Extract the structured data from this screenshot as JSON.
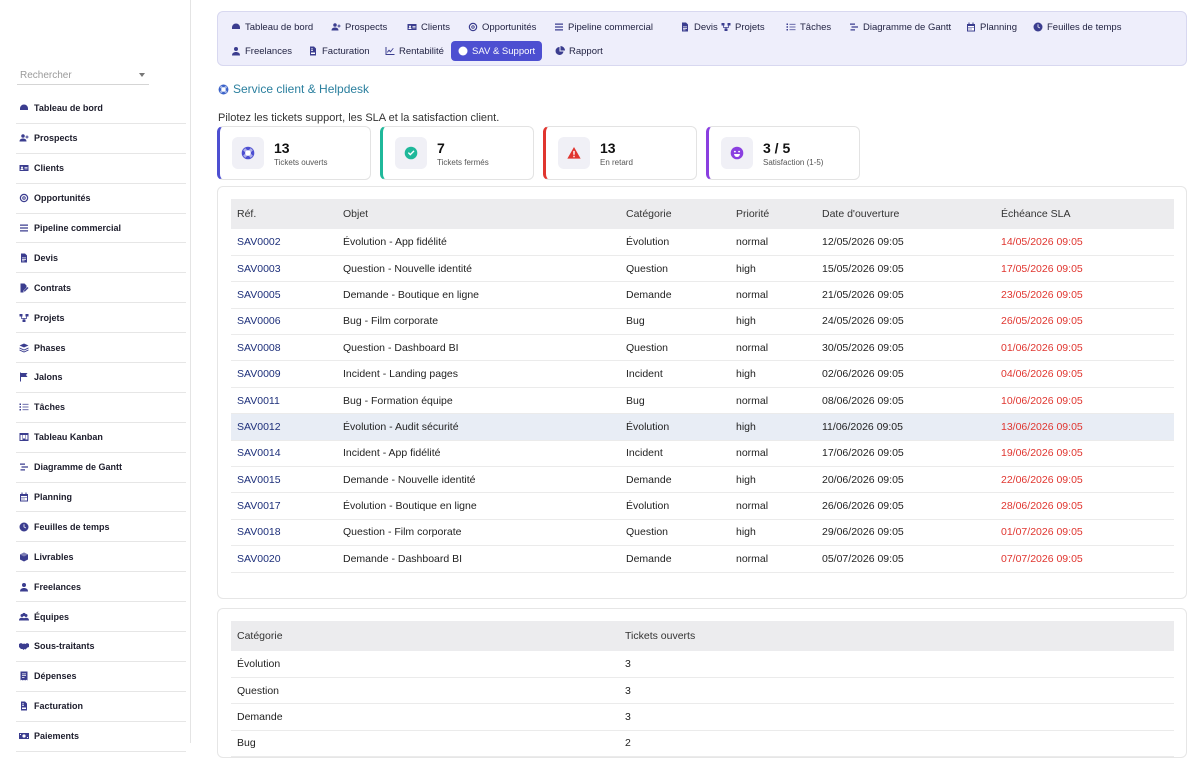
{
  "sidebar": {
    "search_placeholder": "Rechercher",
    "items": [
      {
        "label": "Tableau de bord",
        "icon": "dashboard-icon"
      },
      {
        "label": "Prospects",
        "icon": "user-plus-icon"
      },
      {
        "label": "Clients",
        "icon": "id-card-icon"
      },
      {
        "label": "Opportunités",
        "icon": "target-icon"
      },
      {
        "label": "Pipeline commercial",
        "icon": "bars-icon"
      },
      {
        "label": "Devis",
        "icon": "document-icon"
      },
      {
        "label": "Contrats",
        "icon": "file-signature-icon"
      },
      {
        "label": "Projets",
        "icon": "project-diagram-icon"
      },
      {
        "label": "Phases",
        "icon": "layers-icon"
      },
      {
        "label": "Jalons",
        "icon": "flag-icon"
      },
      {
        "label": "Tâches",
        "icon": "tasks-icon"
      },
      {
        "label": "Tableau Kanban",
        "icon": "kanban-icon"
      },
      {
        "label": "Diagramme de Gantt",
        "icon": "gantt-icon"
      },
      {
        "label": "Planning",
        "icon": "calendar-icon"
      },
      {
        "label": "Feuilles de temps",
        "icon": "clock-icon"
      },
      {
        "label": "Livrables",
        "icon": "box-icon"
      },
      {
        "label": "Freelances",
        "icon": "user-icon"
      },
      {
        "label": "Équipes",
        "icon": "users-icon"
      },
      {
        "label": "Sous-traitants",
        "icon": "handshake-icon"
      },
      {
        "label": "Dépenses",
        "icon": "receipt-icon"
      },
      {
        "label": "Facturation",
        "icon": "invoice-icon"
      },
      {
        "label": "Paiements",
        "icon": "money-icon"
      }
    ]
  },
  "topnav": {
    "tabs": [
      {
        "label": "Tableau de bord",
        "icon": "dashboard-icon"
      },
      {
        "label": "Prospects",
        "icon": "user-plus-icon"
      },
      {
        "label": "Clients",
        "icon": "id-card-icon"
      },
      {
        "label": "Opportunités",
        "icon": "target-icon"
      },
      {
        "label": "Pipeline commercial",
        "icon": "bars-icon"
      },
      {
        "label": "Devis",
        "icon": "document-icon"
      },
      {
        "label": "Projets",
        "icon": "project-diagram-icon"
      },
      {
        "label": "Tâches",
        "icon": "tasks-icon"
      },
      {
        "label": "Diagramme de Gantt",
        "icon": "gantt-icon"
      },
      {
        "label": "Planning",
        "icon": "calendar-icon"
      },
      {
        "label": "Feuilles de temps",
        "icon": "clock-icon"
      },
      {
        "label": "Freelances",
        "icon": "user-icon"
      },
      {
        "label": "Facturation",
        "icon": "invoice-icon"
      },
      {
        "label": "Rentabilité",
        "icon": "chart-line-icon"
      },
      {
        "label": "SAV & Support",
        "icon": "lifebuoy-icon",
        "active": true
      },
      {
        "label": "Rapport",
        "icon": "chart-pie-icon"
      }
    ]
  },
  "page": {
    "title": "Service client & Helpdesk",
    "subtitle": "Pilotez les tickets support, les SLA et la satisfaction client."
  },
  "stats": [
    {
      "value": "13",
      "label": "Tickets ouverts",
      "icon": "lifebuoy-icon",
      "color": "#4d4fd1"
    },
    {
      "value": "7",
      "label": "Tickets fermés",
      "icon": "check-circle-icon",
      "color": "#1fb89a"
    },
    {
      "value": "13",
      "label": "En retard",
      "icon": "warning-icon",
      "color": "#e0352f"
    },
    {
      "value": "3 / 5",
      "label": "Satisfaction (1-5)",
      "icon": "smile-icon",
      "color": "#8a3fe0"
    }
  ],
  "tickets": {
    "columns": [
      "Réf.",
      "Objet",
      "Catégorie",
      "Priorité",
      "Date d'ouverture",
      "Échéance SLA"
    ],
    "rows": [
      [
        "SAV0002",
        "Évolution - App fidélité",
        "Évolution",
        "normal",
        "12/05/2026 09:05",
        "14/05/2026 09:05"
      ],
      [
        "SAV0003",
        "Question - Nouvelle identité",
        "Question",
        "high",
        "15/05/2026 09:05",
        "17/05/2026 09:05"
      ],
      [
        "SAV0005",
        "Demande - Boutique en ligne",
        "Demande",
        "normal",
        "21/05/2026 09:05",
        "23/05/2026 09:05"
      ],
      [
        "SAV0006",
        "Bug - Film corporate",
        "Bug",
        "high",
        "24/05/2026 09:05",
        "26/05/2026 09:05"
      ],
      [
        "SAV0008",
        "Question - Dashboard BI",
        "Question",
        "normal",
        "30/05/2026 09:05",
        "01/06/2026 09:05"
      ],
      [
        "SAV0009",
        "Incident - Landing pages",
        "Incident",
        "high",
        "02/06/2026 09:05",
        "04/06/2026 09:05"
      ],
      [
        "SAV0011",
        "Bug - Formation équipe",
        "Bug",
        "normal",
        "08/06/2026 09:05",
        "10/06/2026 09:05"
      ],
      [
        "SAV0012",
        "Évolution - Audit sécurité",
        "Évolution",
        "high",
        "11/06/2026 09:05",
        "13/06/2026 09:05"
      ],
      [
        "SAV0014",
        "Incident - App fidélité",
        "Incident",
        "normal",
        "17/06/2026 09:05",
        "19/06/2026 09:05"
      ],
      [
        "SAV0015",
        "Demande - Nouvelle identité",
        "Demande",
        "high",
        "20/06/2026 09:05",
        "22/06/2026 09:05"
      ],
      [
        "SAV0017",
        "Évolution - Boutique en ligne",
        "Évolution",
        "normal",
        "26/06/2026 09:05",
        "28/06/2026 09:05"
      ],
      [
        "SAV0018",
        "Question - Film corporate",
        "Question",
        "high",
        "29/06/2026 09:05",
        "01/07/2026 09:05"
      ],
      [
        "SAV0020",
        "Demande - Dashboard BI",
        "Demande",
        "normal",
        "05/07/2026 09:05",
        "07/07/2026 09:05"
      ]
    ]
  },
  "categories": {
    "columns": [
      "Catégorie",
      "Tickets ouverts"
    ],
    "rows": [
      [
        "Évolution",
        "3"
      ],
      [
        "Question",
        "3"
      ],
      [
        "Demande",
        "3"
      ],
      [
        "Bug",
        "2"
      ]
    ]
  }
}
